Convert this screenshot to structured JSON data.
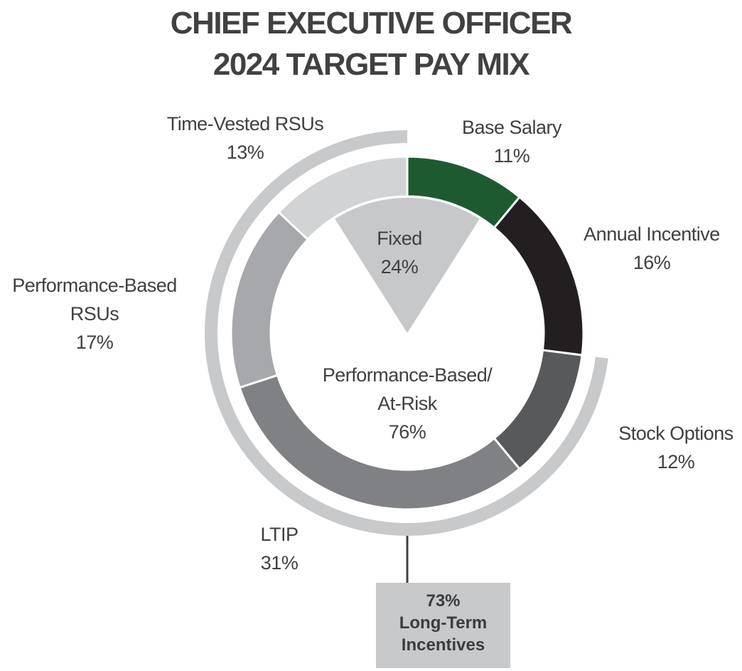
{
  "title": {
    "line1": "CHIEF EXECUTIVE OFFICER",
    "line2": "2024 TARGET PAY MIX"
  },
  "chart_data": {
    "type": "pie",
    "variant": "donut",
    "title": "CHIEF EXECUTIVE OFFICER 2024 TARGET PAY MIX",
    "slices": [
      {
        "label": "Base Salary",
        "pct": "11%",
        "value": 11,
        "color": "#1e5a30"
      },
      {
        "label": "Annual Incentive",
        "pct": "16%",
        "value": 16,
        "color": "#231f20"
      },
      {
        "label": "Stock Options",
        "pct": "12%",
        "value": 12,
        "color": "#58595b"
      },
      {
        "label": "LTIP",
        "pct": "31%",
        "value": 31,
        "color": "#808184"
      },
      {
        "label": "Performance-Based RSUs",
        "label_lines": [
          "Performance-Based",
          "RSUs"
        ],
        "pct": "17%",
        "value": 17,
        "color": "#a6a8ab"
      },
      {
        "label": "Time-Vested RSUs",
        "pct": "13%",
        "value": 13,
        "color": "#d1d3d4"
      }
    ],
    "groups": {
      "fixed": {
        "label": "Fixed",
        "pct": "24%",
        "value": 24,
        "color": "#c7c8ca"
      },
      "performance_based": {
        "label_lines": [
          "Performance-Based/",
          "At-Risk"
        ],
        "pct": "76%",
        "value": 76
      },
      "long_term_incentives": {
        "pct": "73%",
        "label_lines": [
          "Long-Term",
          "Incentives"
        ],
        "value": 73,
        "arc_color": "#c8c9cb"
      }
    }
  }
}
